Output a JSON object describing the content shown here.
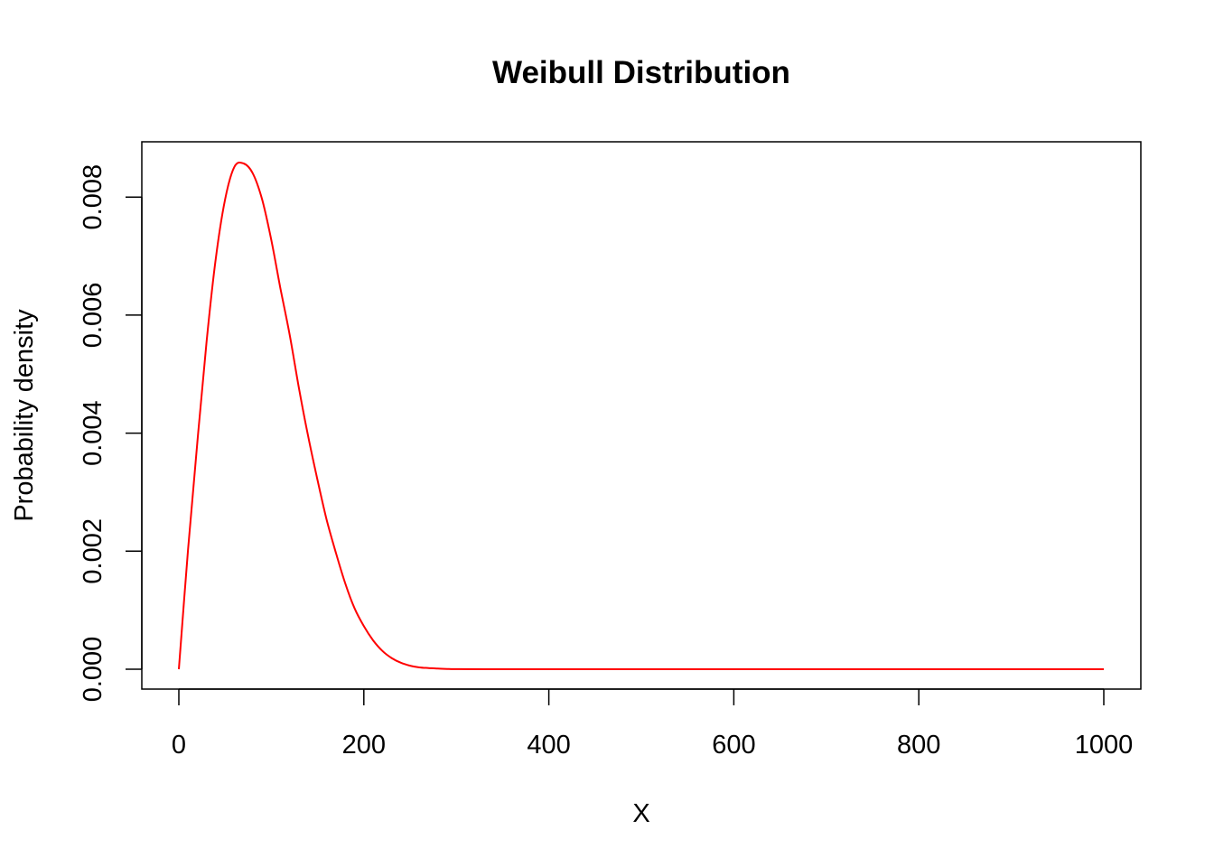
{
  "chart_data": {
    "type": "line",
    "title": "Weibull Distribution",
    "xlabel": "X",
    "ylabel": "Probability density",
    "xlim": [
      0,
      1000
    ],
    "ylim": [
      0,
      0.0086
    ],
    "xticks": [
      0,
      200,
      400,
      600,
      800,
      1000
    ],
    "xtick_labels": [
      "0",
      "200",
      "400",
      "600",
      "800",
      "1000"
    ],
    "yticks": [
      0,
      0.002,
      0.004,
      0.006,
      0.008
    ],
    "ytick_labels": [
      "0.000",
      "0.002",
      "0.004",
      "0.006",
      "0.008"
    ],
    "grid": false,
    "line_color": "#ff0000",
    "x": [
      0,
      10,
      20,
      30,
      40,
      50,
      60,
      70,
      80,
      90,
      100,
      110,
      120,
      130,
      140,
      150,
      160,
      170,
      180,
      190,
      200,
      210,
      220,
      230,
      240,
      250,
      260,
      270,
      280,
      290,
      300,
      350,
      400,
      500,
      600,
      700,
      800,
      900,
      1000
    ],
    "y": [
      0,
      0.00203,
      0.00385,
      0.00555,
      0.00697,
      0.00796,
      0.00851,
      0.00857,
      0.0084,
      0.00796,
      0.00727,
      0.00644,
      0.00565,
      0.00475,
      0.00393,
      0.0032,
      0.00252,
      0.00196,
      0.00145,
      0.00103,
      0.00073,
      0.00049,
      0.00031,
      0.00019,
      0.00011,
      6e-05,
      3e-05,
      2e-05,
      1e-05,
      4e-06,
      1e-06,
      0,
      0,
      0,
      0,
      0,
      0,
      0,
      0
    ]
  }
}
